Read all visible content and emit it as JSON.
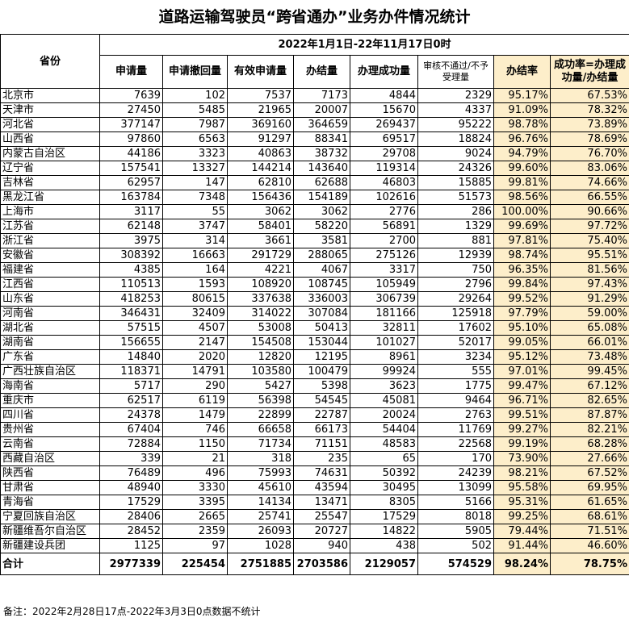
{
  "title": "道路运输驾驶员“跨省通办”业务办件情况统计",
  "header": {
    "province": "省份",
    "period": "2022年1月1日-22年11月17日0时",
    "columns": [
      "申请量",
      "申请撤回量",
      "有效申请量",
      "办结量",
      "办理成功量",
      "审核不通过/不予受理量",
      "办结率",
      "成功率=办理成功量/办结量"
    ]
  },
  "highlight_color": "#fdeeca",
  "rows": [
    [
      "北京市",
      "7639",
      "102",
      "7537",
      "7173",
      "4844",
      "2329",
      "95.17%",
      "67.53%"
    ],
    [
      "天津市",
      "27450",
      "5485",
      "21965",
      "20007",
      "15670",
      "4337",
      "91.09%",
      "78.32%"
    ],
    [
      "河北省",
      "377147",
      "7987",
      "369160",
      "364659",
      "269437",
      "95222",
      "98.78%",
      "73.89%"
    ],
    [
      "山西省",
      "97860",
      "6563",
      "91297",
      "88341",
      "69517",
      "18824",
      "96.76%",
      "78.69%"
    ],
    [
      "内蒙古自治区",
      "44186",
      "3323",
      "40863",
      "38732",
      "29708",
      "9024",
      "94.79%",
      "76.70%"
    ],
    [
      "辽宁省",
      "157541",
      "13327",
      "144214",
      "143640",
      "119314",
      "24326",
      "99.60%",
      "83.06%"
    ],
    [
      "吉林省",
      "62957",
      "147",
      "62810",
      "62688",
      "46803",
      "15885",
      "99.81%",
      "74.66%"
    ],
    [
      "黑龙江省",
      "163784",
      "7348",
      "156436",
      "154189",
      "102616",
      "51573",
      "98.56%",
      "66.55%"
    ],
    [
      "上海市",
      "3117",
      "55",
      "3062",
      "3062",
      "2776",
      "286",
      "100.00%",
      "90.66%"
    ],
    [
      "江苏省",
      "62148",
      "3747",
      "58401",
      "58220",
      "56891",
      "1329",
      "99.69%",
      "97.72%"
    ],
    [
      "浙江省",
      "3975",
      "314",
      "3661",
      "3581",
      "2700",
      "881",
      "97.81%",
      "75.40%"
    ],
    [
      "安徽省",
      "308392",
      "16663",
      "291729",
      "288065",
      "275126",
      "12939",
      "98.74%",
      "95.51%"
    ],
    [
      "福建省",
      "4385",
      "164",
      "4221",
      "4067",
      "3317",
      "750",
      "96.35%",
      "81.56%"
    ],
    [
      "江西省",
      "110513",
      "1593",
      "108920",
      "108745",
      "105949",
      "2796",
      "99.84%",
      "97.43%"
    ],
    [
      "山东省",
      "418253",
      "80615",
      "337638",
      "336003",
      "306739",
      "29264",
      "99.52%",
      "91.29%"
    ],
    [
      "河南省",
      "346431",
      "32409",
      "314022",
      "307084",
      "181166",
      "125918",
      "97.79%",
      "59.00%"
    ],
    [
      "湖北省",
      "57515",
      "4507",
      "53008",
      "50413",
      "32811",
      "17602",
      "95.10%",
      "65.08%"
    ],
    [
      "湖南省",
      "156655",
      "2147",
      "154508",
      "153044",
      "101027",
      "52017",
      "99.05%",
      "66.01%"
    ],
    [
      "广东省",
      "14840",
      "2020",
      "12820",
      "12195",
      "8961",
      "3234",
      "95.12%",
      "73.48%"
    ],
    [
      "广西壮族自治区",
      "118371",
      "14791",
      "103580",
      "100479",
      "99924",
      "555",
      "97.01%",
      "99.45%"
    ],
    [
      "海南省",
      "5717",
      "290",
      "5427",
      "5398",
      "3623",
      "1775",
      "99.47%",
      "67.12%"
    ],
    [
      "重庆市",
      "62517",
      "6119",
      "56398",
      "54545",
      "45081",
      "9464",
      "96.71%",
      "82.65%"
    ],
    [
      "四川省",
      "24378",
      "1479",
      "22899",
      "22787",
      "20024",
      "2763",
      "99.51%",
      "87.87%"
    ],
    [
      "贵州省",
      "67404",
      "746",
      "66658",
      "66173",
      "54404",
      "11769",
      "99.27%",
      "82.21%"
    ],
    [
      "云南省",
      "72884",
      "1150",
      "71734",
      "71151",
      "48583",
      "22568",
      "99.19%",
      "68.28%"
    ],
    [
      "西藏自治区",
      "339",
      "21",
      "318",
      "235",
      "65",
      "170",
      "73.90%",
      "27.66%"
    ],
    [
      "陕西省",
      "76489",
      "496",
      "75993",
      "74631",
      "50392",
      "24239",
      "98.21%",
      "67.52%"
    ],
    [
      "甘肃省",
      "48940",
      "3330",
      "45610",
      "43594",
      "30495",
      "13099",
      "95.58%",
      "69.95%"
    ],
    [
      "青海省",
      "17529",
      "3395",
      "14134",
      "13471",
      "8305",
      "5166",
      "95.31%",
      "61.65%"
    ],
    [
      "宁夏回族自治区",
      "28406",
      "2665",
      "25741",
      "25547",
      "17529",
      "8018",
      "99.25%",
      "68.61%"
    ],
    [
      "新疆维吾尔自治区",
      "28452",
      "2359",
      "26093",
      "20727",
      "14822",
      "5905",
      "79.44%",
      "71.51%"
    ],
    [
      "新疆建设兵团",
      "1125",
      "97",
      "1028",
      "940",
      "438",
      "502",
      "91.44%",
      "46.60%"
    ]
  ],
  "total": [
    "合计",
    "2977339",
    "225454",
    "2751885",
    "2703586",
    "2129057",
    "574529",
    "98.24%",
    "78.75%"
  ],
  "note": "备注：2022年2月28日17点-2022年3月3日0点数据不统计"
}
